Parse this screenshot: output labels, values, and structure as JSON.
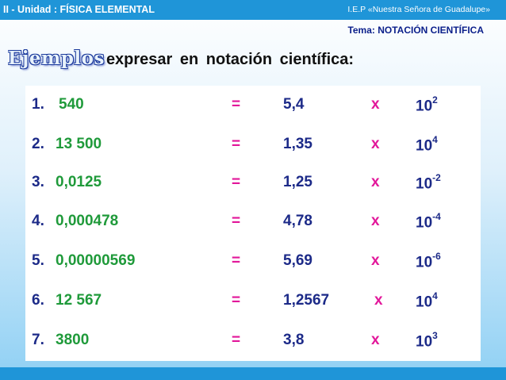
{
  "header": {
    "unit": "II - Unidad : FÍSICA  ELEMENTAL",
    "school": "I.E.P «Nuestra Señora de Guadalupe»",
    "topic": "Tema:  NOTACIÓN  CIENTÍFICA"
  },
  "heading": {
    "title": "Ejemplos",
    "description": "expresar  en  notación  científica:"
  },
  "colors": {
    "bar": "#1f95d8",
    "number_text": "#1c2a88",
    "value_text": "#1f9a3a",
    "operator_text": "#e2179a"
  },
  "rows": [
    {
      "num": "1.",
      "value": "540",
      "eq": "=",
      "mantissa": "5,4",
      "times": "x",
      "base": "10",
      "exp": "2"
    },
    {
      "num": "2.",
      "value": "13 500",
      "eq": "=",
      "mantissa": "1,35",
      "times": "x",
      "base": "10",
      "exp": "4"
    },
    {
      "num": "3.",
      "value": "0,0125",
      "eq": "=",
      "mantissa": "1,25",
      "times": "x",
      "base": "10",
      "exp": "-2"
    },
    {
      "num": "4.",
      "value": "0,000478",
      "eq": "=",
      "mantissa": "4,78",
      "times": "x",
      "base": "10",
      "exp": "-4"
    },
    {
      "num": "5.",
      "value": "0,00000569",
      "eq": "=",
      "mantissa": "5,69",
      "times": "x",
      "base": "10",
      "exp": "-6"
    },
    {
      "num": "6.",
      "value": "12 567",
      "eq": "=",
      "mantissa": "1,2567",
      "times": "x",
      "base": "10",
      "exp": "4"
    },
    {
      "num": "7.",
      "value": "3800",
      "eq": "=",
      "mantissa": "3,8",
      "times": "x",
      "base": "10",
      "exp": "3"
    }
  ]
}
